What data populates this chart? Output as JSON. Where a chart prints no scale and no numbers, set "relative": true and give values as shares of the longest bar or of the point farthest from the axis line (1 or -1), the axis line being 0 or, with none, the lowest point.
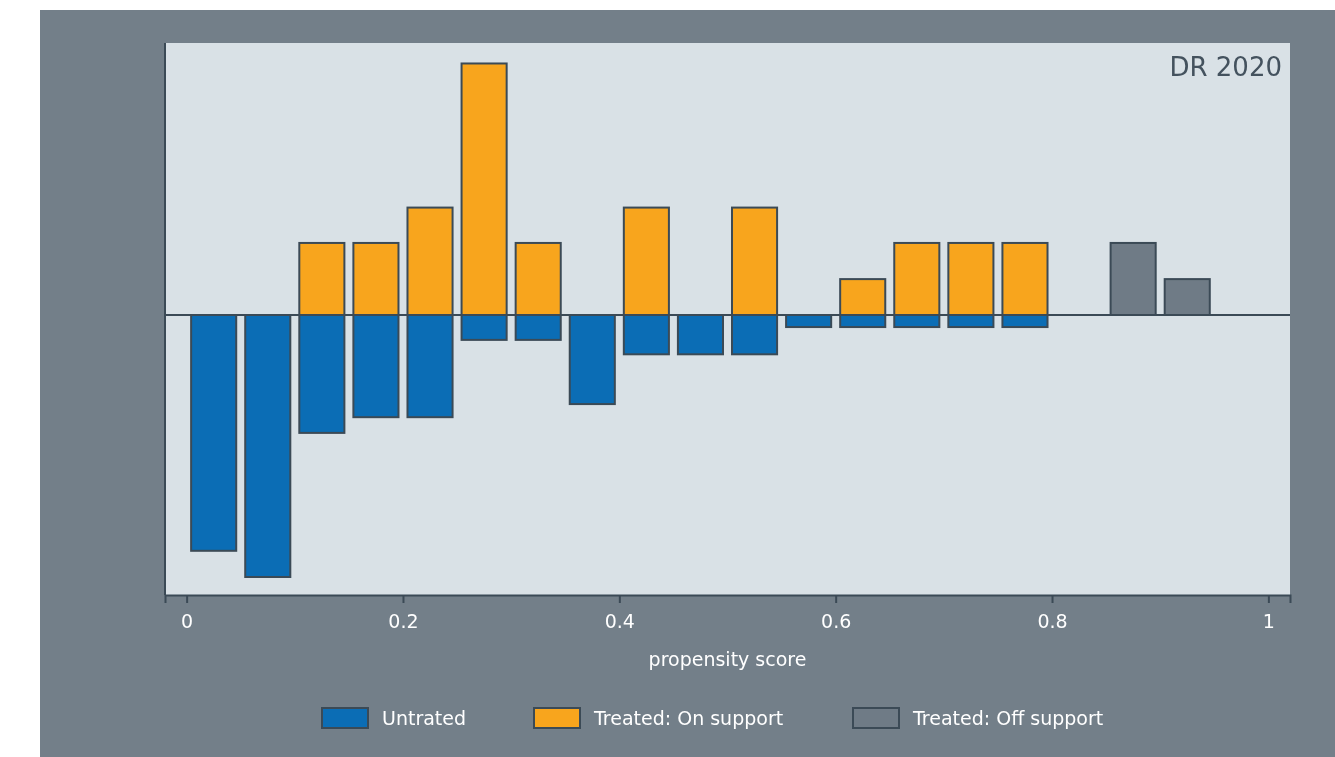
{
  "chart_data": {
    "type": "bar",
    "stacked": true,
    "relative": true,
    "xlabel": "propensity score",
    "annotations": [
      "DR 2020"
    ],
    "x": [
      0.025,
      0.075,
      0.125,
      0.175,
      0.225,
      0.275,
      0.325,
      0.375,
      0.425,
      0.475,
      0.525,
      0.575,
      0.625,
      0.675,
      0.725,
      0.775,
      0.825,
      0.875,
      0.925
    ],
    "xlim": [
      -0.02,
      1.02
    ],
    "xticks": [
      0,
      0.2,
      0.4,
      0.6,
      0.8,
      1
    ],
    "series": [
      {
        "name": "Untrated",
        "color": "#0b6db5",
        "values": [
          -0.9,
          -1,
          -0.45,
          -0.39,
          -0.39,
          -0.095,
          -0.095,
          -0.34,
          -0.15,
          -0.15,
          -0.15,
          -0.046,
          -0.046,
          -0.046,
          -0.046,
          -0.046,
          null,
          null,
          null
        ]
      },
      {
        "name": "Treated: On support",
        "color": "#f8a51d",
        "values": [
          null,
          null,
          0.275,
          0.275,
          0.41,
          0.96,
          0.275,
          null,
          0.41,
          null,
          0.41,
          null,
          0.137,
          0.275,
          0.275,
          0.275,
          null,
          null,
          null
        ]
      },
      {
        "name": "Treated: Off support",
        "color": "#6f7b86",
        "values": [
          null,
          null,
          null,
          null,
          null,
          null,
          null,
          null,
          null,
          null,
          null,
          null,
          null,
          null,
          null,
          null,
          null,
          0.275,
          0.137
        ]
      }
    ],
    "grid": false,
    "legend": "bottom"
  }
}
